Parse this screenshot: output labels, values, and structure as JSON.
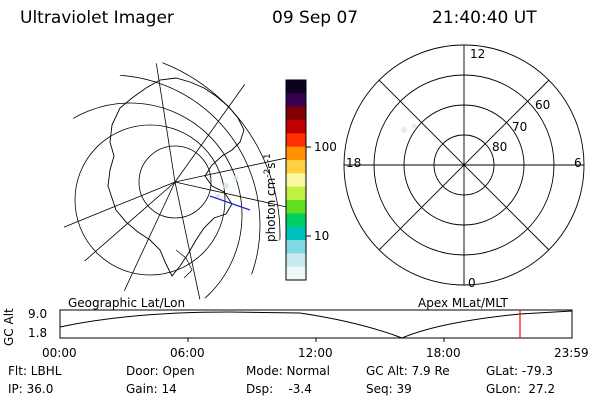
{
  "header": {
    "title": "Ultraviolet Imager",
    "date": "09 Sep 07",
    "time": "21:40:40 UT"
  },
  "geo_panel": {
    "label": "Geographic Lat/Lon"
  },
  "colorbar": {
    "unit_label": "photon cm",
    "unit_sup1": "-2",
    "unit_mid": "s",
    "unit_sup2": "-1",
    "tick_100": "100",
    "tick_10": "10",
    "colors": [
      "#100020",
      "#3a0050",
      "#800000",
      "#c00000",
      "#ff3000",
      "#ff9000",
      "#ffd040",
      "#f8f8a0",
      "#c0f040",
      "#60e020",
      "#00d060",
      "#00c0c0",
      "#80d8e0",
      "#c8e8f0",
      "#f0f8fa"
    ]
  },
  "apex_panel": {
    "label": "Apex MLat/MLT",
    "mlt_12": "12",
    "mlt_18": "18",
    "mlt_6": "6",
    "mlt_0": "0",
    "mlat_60": "60",
    "mlat_70": "70",
    "mlat_80": "80"
  },
  "altitude_plot": {
    "ylabel": "GC Alt",
    "y_max": "9.0",
    "y_min": "1.8",
    "x_ticks": [
      "00:00",
      "06:00",
      "12:00",
      "18:00",
      "23:59"
    ],
    "current_time_marker": "21:40:40",
    "marker_color": "#ff0000"
  },
  "footer": {
    "row1": {
      "flt": "Flt: LBHL",
      "door": "Door: Open",
      "mode": "Mode: Normal",
      "gcalt": "GC Alt: 7.9 Re",
      "glat": "GLat: -79.3"
    },
    "row2": {
      "ip": "IP: 36.0",
      "gain": "Gain: 14",
      "dsp": "Dsp:    -3.4",
      "seq": "Seq: 39",
      "glon": "GLon:  27.2"
    }
  }
}
